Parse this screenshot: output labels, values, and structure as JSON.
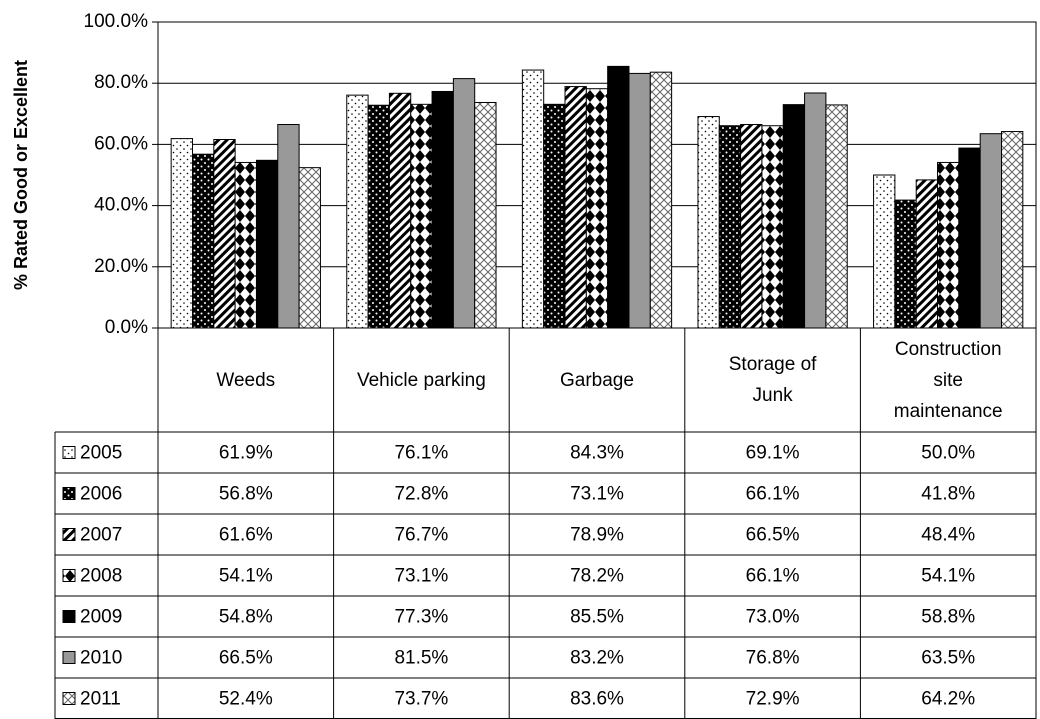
{
  "chart_data": {
    "type": "bar",
    "ylabel": "% Rated Good or Excellent",
    "categories": [
      "Weeds",
      "Vehicle parking",
      "Garbage",
      "Storage of Junk",
      "Construction site maintenance"
    ],
    "series": [
      {
        "name": "2005",
        "color": "#ffffff",
        "values": [
          61.9,
          76.1,
          84.3,
          69.1,
          50.0
        ],
        "value_labels": [
          "61.9%",
          "76.1%",
          "84.3%",
          "69.1%",
          "50.0%"
        ]
      },
      {
        "name": "2006",
        "color": "#000000",
        "values": [
          56.8,
          72.8,
          73.1,
          66.1,
          41.8
        ],
        "value_labels": [
          "56.8%",
          "72.8%",
          "73.1%",
          "66.1%",
          "41.8%"
        ]
      },
      {
        "name": "2007",
        "color": "#ffffff",
        "values": [
          61.6,
          76.7,
          78.9,
          66.5,
          48.4
        ],
        "value_labels": [
          "61.6%",
          "76.7%",
          "78.9%",
          "66.5%",
          "48.4%"
        ]
      },
      {
        "name": "2008",
        "color": "#000000",
        "values": [
          54.1,
          73.1,
          78.2,
          66.1,
          54.1
        ],
        "value_labels": [
          "54.1%",
          "73.1%",
          "78.2%",
          "66.1%",
          "54.1%"
        ]
      },
      {
        "name": "2009",
        "color": "#000000",
        "values": [
          54.8,
          77.3,
          85.5,
          73.0,
          58.8
        ],
        "value_labels": [
          "54.8%",
          "77.3%",
          "85.5%",
          "73.0%",
          "58.8%"
        ]
      },
      {
        "name": "2010",
        "color": "#999999",
        "values": [
          66.5,
          81.5,
          83.2,
          76.8,
          63.5
        ],
        "value_labels": [
          "66.5%",
          "81.5%",
          "83.2%",
          "76.8%",
          "63.5%"
        ]
      },
      {
        "name": "2011",
        "color": "#ffffff",
        "values": [
          52.4,
          73.7,
          83.6,
          72.9,
          64.2
        ],
        "value_labels": [
          "52.4%",
          "73.7%",
          "83.6%",
          "72.9%",
          "64.2%"
        ]
      }
    ],
    "ylim": [
      0,
      100
    ],
    "yticks": [
      {
        "value": 0,
        "label": "0.0%"
      },
      {
        "value": 20,
        "label": "20.0%"
      },
      {
        "value": 40,
        "label": "40.0%"
      },
      {
        "value": 60,
        "label": "60.0%"
      },
      {
        "value": 80,
        "label": "80.0%"
      },
      {
        "value": 100,
        "label": "100.0%"
      }
    ],
    "grid": true
  }
}
